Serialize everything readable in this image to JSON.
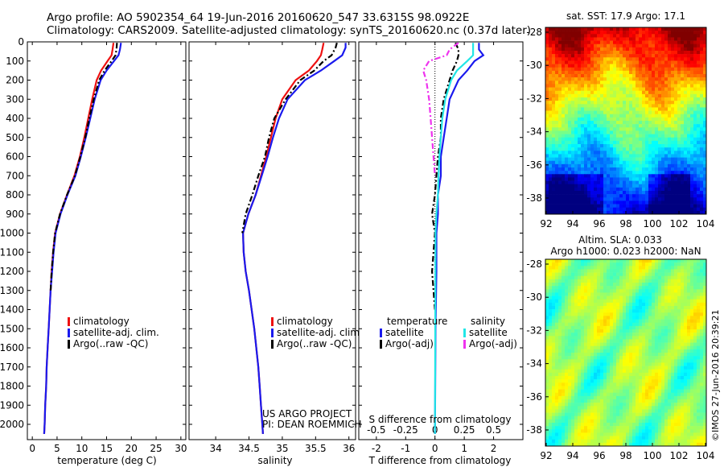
{
  "header": {
    "title_line1": "Argo profile: AO 5902354_64 19-Jun-2016 20160620_547 33.6315S 98.0922E",
    "title_line2": "Climatology: CARS2009. Satellite-adjusted climatology: synTS_20160620.nc (0.37d later)"
  },
  "colors": {
    "climatology": "#ee1111",
    "satellite": "#1a1aee",
    "argo": "#000000",
    "sal_satellite": "#22e6e6",
    "sal_argo": "#ee33ee"
  },
  "panels": {
    "temperature": {
      "xlabel": "temperature (deg C)",
      "legend": [
        "climatology",
        "satellite-adj. clim.",
        "Argo(..raw -QC)"
      ]
    },
    "salinity": {
      "xlabel": "salinity",
      "legend": [
        "climatology",
        "satellite-adj. clim.",
        "Argo(..raw -QC)"
      ],
      "credit_line1": "US ARGO PROJECT",
      "credit_line2": "PI: DEAN ROEMMICH"
    },
    "difference": {
      "xlabel": "T difference from climatology",
      "top_label": "S difference from climatology",
      "legend_temp_title": "temperature",
      "legend_sal_title": "salinity",
      "legend_temp": [
        "satellite",
        "Argo(-adj)"
      ],
      "legend_sal": [
        "satellite",
        "Argo(-adj)"
      ]
    },
    "sst_map": {
      "title": "sat. SST: 17.9  Argo: 17.1"
    },
    "sla_map": {
      "title_line1": "Altim. SLA: 0.033",
      "title_line2": "Argo h1000: 0.023 h2000: NaN"
    },
    "timestamp": "©IMOS 27-Jun-2016 20:39:21"
  },
  "chart_data": [
    {
      "type": "line",
      "panel": "temperature",
      "xlim": [
        -1,
        31
      ],
      "ylim": [
        2080,
        0
      ],
      "xticks": [
        0,
        5,
        10,
        15,
        20,
        25,
        30
      ],
      "yticks": [
        0,
        100,
        200,
        300,
        400,
        500,
        600,
        700,
        800,
        900,
        1000,
        1100,
        1200,
        1300,
        1400,
        1500,
        1600,
        1700,
        1800,
        1900,
        2000
      ],
      "series": [
        {
          "name": "climatology",
          "color": "#ee1111",
          "points": [
            [
              16.4,
              5
            ],
            [
              16.2,
              40
            ],
            [
              16.0,
              70
            ],
            [
              15.2,
              100
            ],
            [
              13.9,
              150
            ],
            [
              13.0,
              200
            ],
            [
              12.1,
              300
            ],
            [
              11.3,
              400
            ],
            [
              10.5,
              500
            ],
            [
              9.6,
              600
            ],
            [
              8.5,
              700
            ],
            [
              7.0,
              800
            ],
            [
              5.6,
              900
            ],
            [
              4.6,
              1000
            ],
            [
              4.2,
              1100
            ],
            [
              3.9,
              1200
            ],
            [
              3.7,
              1300
            ],
            [
              3.5,
              1400
            ],
            [
              3.3,
              1500
            ],
            [
              3.1,
              1600
            ],
            [
              2.9,
              1700
            ],
            [
              2.8,
              1800
            ],
            [
              2.6,
              1900
            ],
            [
              2.5,
              2000
            ],
            [
              2.4,
              2050
            ]
          ]
        },
        {
          "name": "satellite-adj. clim.",
          "color": "#1a1aee",
          "points": [
            [
              17.9,
              5
            ],
            [
              17.7,
              40
            ],
            [
              17.4,
              70
            ],
            [
              16.5,
              100
            ],
            [
              15.0,
              150
            ],
            [
              13.8,
              200
            ],
            [
              12.6,
              300
            ],
            [
              11.7,
              400
            ],
            [
              10.8,
              500
            ],
            [
              9.8,
              600
            ],
            [
              8.7,
              700
            ],
            [
              7.1,
              800
            ],
            [
              5.7,
              900
            ],
            [
              4.7,
              1000
            ],
            [
              4.3,
              1100
            ],
            [
              4.0,
              1200
            ],
            [
              3.7,
              1300
            ],
            [
              3.5,
              1400
            ],
            [
              3.3,
              1500
            ],
            [
              3.1,
              1600
            ],
            [
              2.9,
              1700
            ],
            [
              2.8,
              1800
            ],
            [
              2.6,
              1900
            ],
            [
              2.5,
              2000
            ],
            [
              2.4,
              2050
            ]
          ]
        },
        {
          "name": "Argo(..raw -QC)",
          "color": "#000000",
          "dashed": true,
          "points": [
            [
              17.1,
              5
            ],
            [
              17.0,
              40
            ],
            [
              16.8,
              70
            ],
            [
              16.0,
              100
            ],
            [
              14.6,
              150
            ],
            [
              13.5,
              200
            ],
            [
              12.4,
              300
            ],
            [
              11.5,
              400
            ],
            [
              10.7,
              500
            ],
            [
              9.7,
              600
            ],
            [
              8.6,
              700
            ],
            [
              7.0,
              800
            ],
            [
              5.6,
              900
            ],
            [
              4.6,
              1000
            ],
            [
              4.2,
              1100
            ],
            [
              3.9,
              1200
            ],
            [
              3.7,
              1300
            ]
          ]
        }
      ]
    },
    {
      "type": "line",
      "panel": "salinity",
      "xlim": [
        33.6,
        36.1
      ],
      "ylim": [
        2080,
        0
      ],
      "xticks": [
        34,
        34.5,
        35,
        35.5,
        36
      ],
      "series": [
        {
          "name": "climatology",
          "color": "#ee1111",
          "points": [
            [
              35.62,
              5
            ],
            [
              35.6,
              40
            ],
            [
              35.58,
              70
            ],
            [
              35.52,
              100
            ],
            [
              35.4,
              150
            ],
            [
              35.2,
              200
            ],
            [
              35.0,
              300
            ],
            [
              34.9,
              400
            ],
            [
              34.83,
              500
            ],
            [
              34.76,
              600
            ],
            [
              34.68,
              700
            ],
            [
              34.6,
              800
            ],
            [
              34.49,
              900
            ],
            [
              34.41,
              1000
            ],
            [
              34.42,
              1100
            ],
            [
              34.45,
              1200
            ],
            [
              34.5,
              1300
            ],
            [
              34.54,
              1400
            ],
            [
              34.58,
              1500
            ],
            [
              34.61,
              1600
            ],
            [
              34.64,
              1700
            ],
            [
              34.66,
              1800
            ],
            [
              34.68,
              1900
            ],
            [
              34.7,
              2000
            ],
            [
              34.71,
              2050
            ]
          ]
        },
        {
          "name": "satellite-adj. clim.",
          "color": "#1a1aee",
          "points": [
            [
              35.95,
              5
            ],
            [
              35.95,
              30
            ],
            [
              35.9,
              70
            ],
            [
              35.78,
              100
            ],
            [
              35.58,
              150
            ],
            [
              35.34,
              200
            ],
            [
              35.08,
              300
            ],
            [
              34.95,
              400
            ],
            [
              34.86,
              500
            ],
            [
              34.78,
              600
            ],
            [
              34.69,
              700
            ],
            [
              34.6,
              800
            ],
            [
              34.49,
              900
            ],
            [
              34.41,
              1000
            ],
            [
              34.42,
              1100
            ],
            [
              34.45,
              1200
            ],
            [
              34.5,
              1300
            ],
            [
              34.54,
              1400
            ],
            [
              34.58,
              1500
            ],
            [
              34.61,
              1600
            ],
            [
              34.64,
              1700
            ],
            [
              34.66,
              1800
            ],
            [
              34.68,
              1900
            ],
            [
              34.7,
              2000
            ],
            [
              34.71,
              2050
            ]
          ]
        },
        {
          "name": "Argo(..raw -QC)",
          "color": "#000000",
          "dashed": true,
          "points": [
            [
              35.82,
              5
            ],
            [
              35.8,
              30
            ],
            [
              35.74,
              70
            ],
            [
              35.62,
              100
            ],
            [
              35.48,
              150
            ],
            [
              35.27,
              200
            ],
            [
              35.05,
              300
            ],
            [
              34.88,
              400
            ],
            [
              34.8,
              500
            ],
            [
              34.74,
              600
            ],
            [
              34.64,
              700
            ],
            [
              34.55,
              800
            ],
            [
              34.45,
              900
            ],
            [
              34.4,
              1000
            ]
          ]
        }
      ]
    },
    {
      "type": "line",
      "panel": "difference",
      "xlim": [
        -2.6,
        3.0
      ],
      "ylim": [
        2080,
        0
      ],
      "xticks": [
        -2,
        -1,
        0,
        1,
        2
      ],
      "top_xticks": [
        "-0.5",
        "-0.25",
        "0",
        "0.25",
        "0.5"
      ],
      "series": [
        {
          "name": "temperature satellite",
          "color": "#1a1aee",
          "points": [
            [
              1.5,
              5
            ],
            [
              1.5,
              40
            ],
            [
              1.65,
              70
            ],
            [
              1.35,
              100
            ],
            [
              1.1,
              150
            ],
            [
              0.8,
              200
            ],
            [
              0.5,
              300
            ],
            [
              0.4,
              400
            ],
            [
              0.3,
              500
            ],
            [
              0.2,
              600
            ],
            [
              0.2,
              700
            ],
            [
              0.1,
              800
            ],
            [
              0.1,
              900
            ],
            [
              0.05,
              1000
            ],
            [
              0.05,
              1200
            ],
            [
              0.02,
              1500
            ],
            [
              0.0,
              2050
            ]
          ]
        },
        {
          "name": "temperature Argo(-adj)",
          "color": "#000000",
          "dashed": true,
          "points": [
            [
              0.7,
              5
            ],
            [
              0.8,
              40
            ],
            [
              0.8,
              70
            ],
            [
              0.75,
              100
            ],
            [
              0.6,
              150
            ],
            [
              0.5,
              200
            ],
            [
              0.3,
              300
            ],
            [
              0.2,
              400
            ],
            [
              0.2,
              500
            ],
            [
              0.1,
              600
            ],
            [
              0.05,
              700
            ],
            [
              0.0,
              800
            ],
            [
              -0.1,
              900
            ],
            [
              0.0,
              1000
            ],
            [
              -0.05,
              1100
            ],
            [
              -0.1,
              1200
            ],
            [
              -0.05,
              1300
            ],
            [
              0.0,
              1400
            ]
          ]
        },
        {
          "name": "salinity satellite",
          "color": "#22e6e6",
          "points": [
            [
              1.3,
              5
            ],
            [
              1.3,
              40
            ],
            [
              1.3,
              70
            ],
            [
              1.1,
              100
            ],
            [
              0.75,
              150
            ],
            [
              0.55,
              200
            ],
            [
              0.35,
              300
            ],
            [
              0.25,
              400
            ],
            [
              0.2,
              500
            ],
            [
              0.15,
              600
            ],
            [
              0.12,
              700
            ],
            [
              0.1,
              800
            ],
            [
              0.05,
              900
            ],
            [
              0.02,
              1000
            ],
            [
              0.0,
              2050
            ]
          ]
        },
        {
          "name": "salinity Argo(-adj)",
          "color": "#ee33ee",
          "dashed": true,
          "points": [
            [
              0.8,
              5
            ],
            [
              0.5,
              40
            ],
            [
              0.4,
              70
            ],
            [
              -0.2,
              100
            ],
            [
              -0.4,
              150
            ],
            [
              -0.3,
              200
            ],
            [
              -0.2,
              300
            ],
            [
              -0.15,
              400
            ],
            [
              -0.1,
              500
            ],
            [
              -0.05,
              600
            ],
            [
              0.0,
              700
            ]
          ]
        }
      ]
    },
    {
      "type": "heatmap",
      "panel": "sst_map",
      "xticks": [
        "92",
        "94",
        "96",
        "98",
        "100",
        "102",
        "104"
      ],
      "yticks": [
        "-28",
        "-30",
        "-32",
        "-34",
        "-36",
        "-38"
      ]
    },
    {
      "type": "heatmap",
      "panel": "sla_map",
      "xticks": [
        "92",
        "94",
        "96",
        "98",
        "100",
        "102",
        "104"
      ],
      "yticks": [
        "-28",
        "-30",
        "-32",
        "-34",
        "-36",
        "-38"
      ]
    }
  ]
}
